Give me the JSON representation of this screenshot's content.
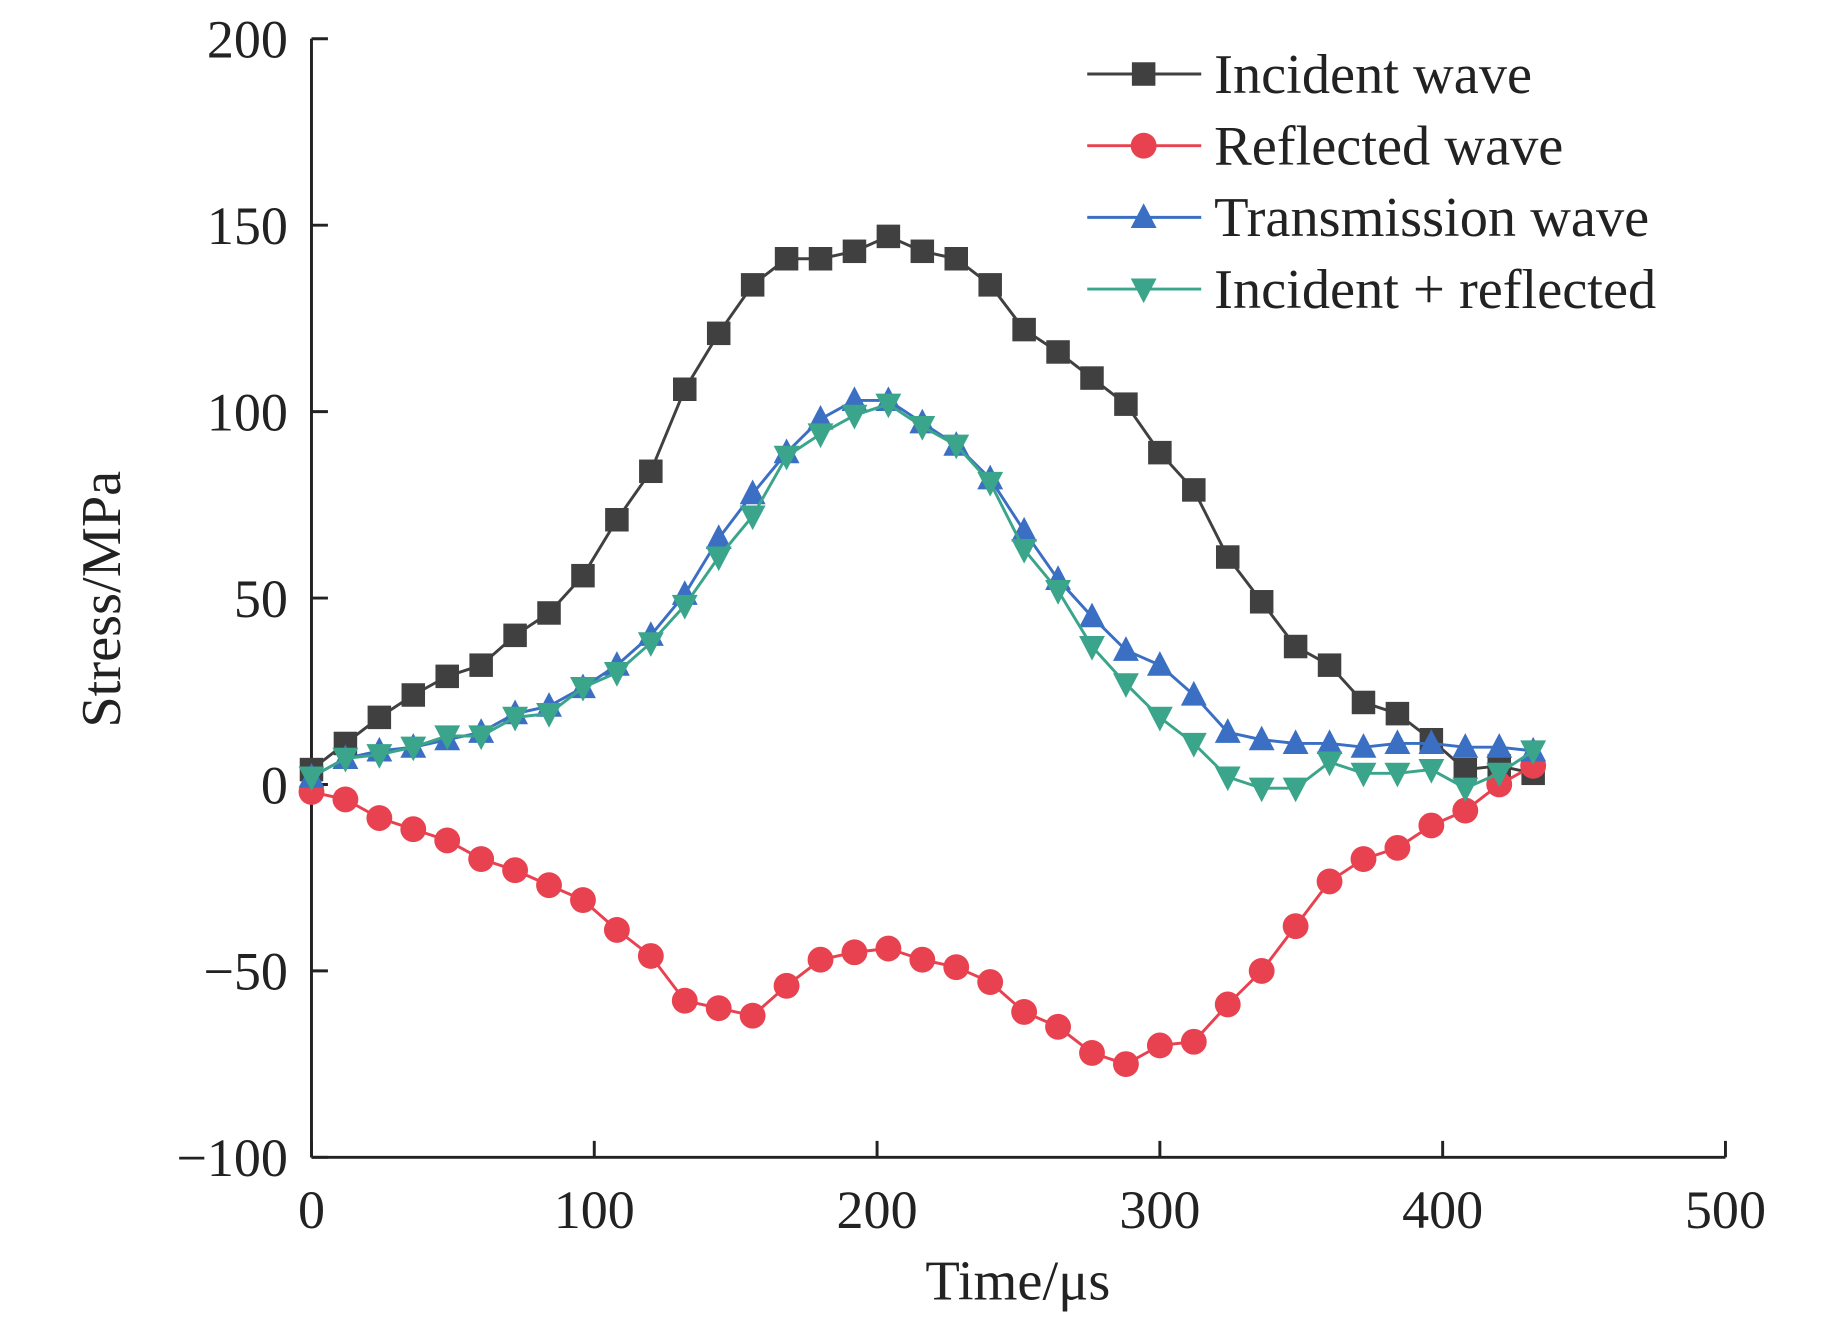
{
  "chart_data": {
    "type": "line",
    "title": "",
    "xlabel": "Time/μs",
    "ylabel": "Stress/MPa",
    "xlim": [
      0,
      500
    ],
    "ylim": [
      -100,
      200
    ],
    "xticks": [
      0,
      100,
      200,
      300,
      400,
      500
    ],
    "yticks": [
      -100,
      -50,
      0,
      50,
      100,
      150,
      200
    ],
    "xtick_labels": [
      "0",
      "100",
      "200",
      "300",
      "400",
      "500"
    ],
    "ytick_labels": [
      "−100",
      "−50",
      "0",
      "50",
      "100",
      "150",
      "200"
    ],
    "grid": false,
    "legend_position": "top-right",
    "x": [
      0,
      12,
      24,
      36,
      48,
      60,
      72,
      84,
      96,
      108,
      120,
      132,
      144,
      156,
      168,
      180,
      192,
      204,
      216,
      228,
      240,
      252,
      264,
      276,
      288,
      300,
      312,
      324,
      336,
      348,
      360,
      372,
      384,
      396,
      408,
      420,
      432
    ],
    "series": [
      {
        "name": "Incident wave",
        "color": "#404040",
        "marker": "square",
        "values": [
          4,
          11,
          18,
          24,
          29,
          32,
          40,
          46,
          56,
          71,
          84,
          106,
          121,
          134,
          141,
          141,
          143,
          147,
          143,
          141,
          134,
          122,
          116,
          109,
          102,
          89,
          79,
          61,
          49,
          37,
          32,
          22,
          19,
          12,
          4,
          5,
          3
        ]
      },
      {
        "name": "Reflected wave",
        "color": "#e8414f",
        "marker": "circle",
        "values": [
          -2,
          -4,
          -9,
          -12,
          -15,
          -20,
          -23,
          -27,
          -31,
          -39,
          -46,
          -58,
          -60,
          -62,
          -54,
          -47,
          -45,
          -44,
          -47,
          -49,
          -53,
          -61,
          -65,
          -72,
          -75,
          -70,
          -69,
          -59,
          -50,
          -38,
          -26,
          -20,
          -17,
          -11,
          -7,
          0,
          5
        ]
      },
      {
        "name": "Transmission wave",
        "color": "#3a6fc4",
        "marker": "triangle-up",
        "values": [
          2,
          7,
          9,
          10,
          12,
          14,
          19,
          21,
          26,
          32,
          40,
          51,
          66,
          78,
          89,
          98,
          103,
          103,
          97,
          91,
          82,
          68,
          55,
          45,
          36,
          32,
          24,
          14,
          12,
          11,
          11,
          10,
          11,
          11,
          10,
          10,
          9
        ]
      },
      {
        "name": "Incident + reflected",
        "color": "#3aa58a",
        "marker": "triangle-down",
        "values": [
          2,
          7,
          8,
          10,
          13,
          13,
          18,
          19,
          26,
          30,
          38,
          48,
          61,
          72,
          88,
          94,
          99,
          102,
          96,
          91,
          81,
          63,
          52,
          37,
          27,
          18,
          11,
          2,
          -1,
          -1,
          6,
          3,
          3,
          4,
          -1,
          3,
          9
        ]
      }
    ]
  }
}
